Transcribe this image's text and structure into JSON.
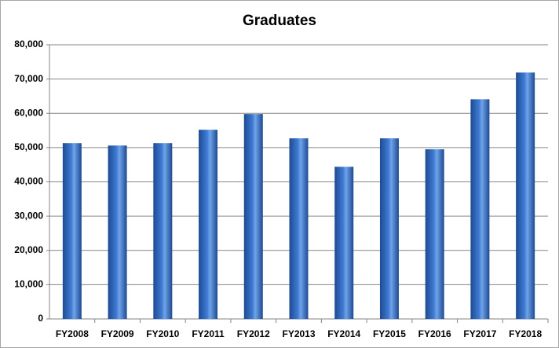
{
  "chart_data": {
    "type": "bar",
    "title": "Graduates",
    "categories": [
      "FY2008",
      "FY2009",
      "FY2010",
      "FY2011",
      "FY2012",
      "FY2013",
      "FY2014",
      "FY2015",
      "FY2016",
      "FY2017",
      "FY2018"
    ],
    "values": [
      51300,
      50600,
      51300,
      55200,
      59800,
      52700,
      44400,
      52700,
      49500,
      64100,
      71900
    ],
    "color": "#3f7bd3",
    "ylim": [
      0,
      80000
    ],
    "yticks": [
      0,
      {
        "value": 10000,
        "label": "10,000"
      },
      {
        "value": 20000,
        "label": "20,000"
      },
      {
        "value": 30000,
        "label": "30,000"
      },
      {
        "value": 40000,
        "label": "40,000"
      },
      {
        "value": 50000,
        "label": "50,000"
      },
      {
        "value": 60000,
        "label": "60,000"
      },
      {
        "value": 70000,
        "label": "70,000"
      },
      {
        "value": 80000,
        "label": "80,000"
      }
    ],
    "grid": true
  }
}
